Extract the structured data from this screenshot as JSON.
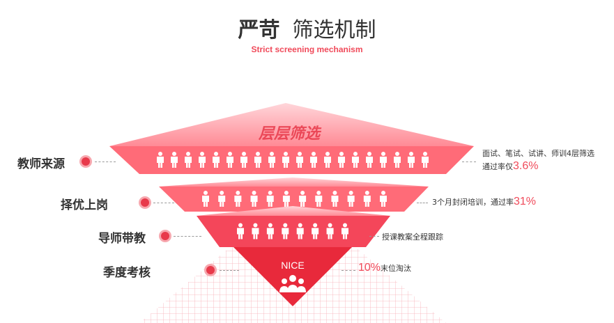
{
  "header": {
    "title_bold": "严苛",
    "title_light": "筛选机制",
    "subtitle": "Strict screening mechanism"
  },
  "funnel": {
    "top_banner": "层层筛选",
    "bottom_badge": "NICE",
    "tiers": [
      {
        "label": "教师来源",
        "people": 20,
        "note_line1": "面试、笔试、试讲、师训4层筛选",
        "note_prefix": "通过率仅",
        "note_pct": "3.6%"
      },
      {
        "label": "择优上岗",
        "people": 12,
        "note_prefix": "3个月封闭培训，通过率",
        "note_pct": "31%"
      },
      {
        "label": "导师带教",
        "people": 8,
        "note_prefix": "授课教案全程跟踪"
      },
      {
        "label": "季度考核",
        "note_pct": "10%",
        "note_suffix": "末位淘汰"
      }
    ]
  },
  "colors": {
    "accent": "#f04a5a",
    "tier_light": "#ff6b78",
    "tier_dark": "#e8293b",
    "text": "#333333"
  }
}
